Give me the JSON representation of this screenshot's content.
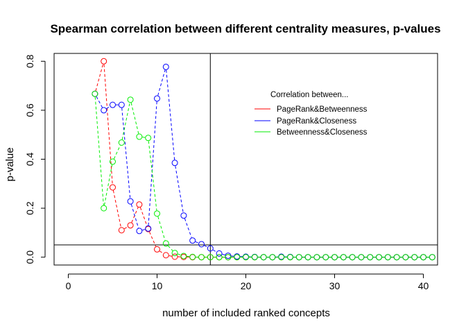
{
  "chart_data": {
    "type": "line",
    "title": "Spearman correlation between different centrality measures, p-values",
    "xlabel": "number of included ranked concepts",
    "ylabel": "p-value",
    "xlim": [
      -1.6,
      41.6
    ],
    "ylim": [
      -0.032,
      0.832
    ],
    "xticks": [
      0,
      10,
      20,
      30,
      40
    ],
    "yticks": [
      0.0,
      0.2,
      0.4,
      0.6,
      0.8
    ],
    "xtick_labels": [
      "0",
      "10",
      "20",
      "30",
      "40"
    ],
    "ytick_labels": [
      "0.0",
      "0.2",
      "0.4",
      "0.6",
      "0.8"
    ],
    "grid": false,
    "reference_lines": {
      "vertical_x": 16,
      "horizontal_y": 0.05
    },
    "legend": {
      "title": "Correlation between...",
      "position": "top-right",
      "entries": [
        "PageRank&Betweenness",
        "PageRank&Closeness",
        "Betweenness&Closeness"
      ]
    },
    "x": [
      3,
      4,
      5,
      6,
      7,
      8,
      9,
      10,
      11,
      12,
      13,
      14,
      15,
      16,
      17,
      18,
      19,
      20,
      21,
      22,
      23,
      24,
      25,
      26,
      27,
      28,
      29,
      30,
      31,
      32,
      33,
      34,
      35,
      36,
      37,
      38,
      39,
      40,
      41
    ],
    "series": [
      {
        "name": "PageRank&Betweenness",
        "color": "#ff0000",
        "values": [
          0.667,
          0.8,
          0.285,
          0.11,
          0.13,
          0.215,
          0.115,
          0.032,
          0.008,
          0.002,
          0.001,
          0,
          0,
          0,
          0,
          0,
          0,
          0,
          0,
          0,
          0,
          0,
          0,
          0,
          0,
          0,
          0,
          0,
          0,
          0,
          0,
          0,
          0,
          0,
          0,
          0,
          0,
          0,
          0
        ]
      },
      {
        "name": "PageRank&Closeness",
        "color": "#0000ff",
        "values": [
          0.667,
          0.6,
          0.622,
          0.622,
          0.228,
          0.107,
          0.117,
          0.648,
          0.777,
          0.385,
          0.17,
          0.068,
          0.053,
          0.036,
          0.015,
          0.006,
          0.003,
          0.002,
          0.001,
          0,
          0,
          0.002,
          0.001,
          0,
          0,
          0,
          0,
          0,
          0,
          0,
          0,
          0,
          0,
          0,
          0,
          0,
          0,
          0,
          0
        ]
      },
      {
        "name": "Betweenness&Closeness",
        "color": "#00ee00",
        "values": [
          0.667,
          0.2,
          0.39,
          0.468,
          0.643,
          0.492,
          0.487,
          0.178,
          0.056,
          0.017,
          0.005,
          0.001,
          0,
          0,
          0,
          0,
          0,
          0,
          0,
          0,
          0,
          0,
          0,
          0,
          0,
          0,
          0,
          0,
          0,
          0,
          0,
          0,
          0,
          0,
          0,
          0,
          0,
          0,
          0
        ]
      }
    ]
  }
}
